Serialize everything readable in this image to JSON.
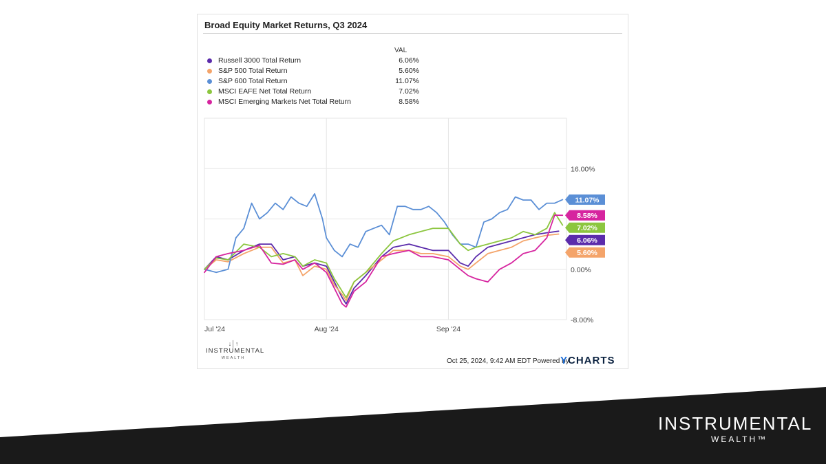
{
  "chart_data": {
    "type": "line",
    "title": "Broad Equity Market Returns, Q3 2024",
    "legend_header": "VAL",
    "x_ticks": [
      "Jul '24",
      "Aug '24",
      "Sep '24"
    ],
    "y_ticks": [
      "16.00%",
      "0.00%",
      "-8.00%"
    ],
    "ylim": [
      -8,
      24
    ],
    "y_unit": "%",
    "grid": true,
    "legend_placement": "top-left",
    "x_range": [
      0,
      92
    ],
    "x_tick_positions": [
      0,
      31,
      62
    ],
    "series": [
      {
        "name": "Russell 3000 Total Return",
        "value_label": "6.06%",
        "color": "#5b2bab",
        "x": [
          0,
          3,
          6,
          10,
          14,
          17,
          20,
          23,
          25,
          28,
          31,
          33,
          35,
          36,
          38,
          41,
          45,
          48,
          52,
          55,
          58,
          62,
          65,
          67,
          69,
          72,
          75,
          78,
          81,
          84,
          87,
          90
        ],
        "y": [
          0,
          2,
          1.5,
          3,
          4,
          4,
          1.5,
          2,
          0.5,
          1,
          0.5,
          -2,
          -4.5,
          -5.5,
          -3,
          -1,
          2,
          3.5,
          4,
          3.5,
          3,
          3,
          1,
          0.5,
          2,
          3.5,
          4,
          4.5,
          5,
          5.5,
          5.8,
          6.06
        ]
      },
      {
        "name": "S&P 500 Total Return",
        "value_label": "5.60%",
        "color": "#f4a46a",
        "x": [
          0,
          3,
          6,
          10,
          14,
          17,
          20,
          23,
          25,
          28,
          31,
          33,
          35,
          36,
          38,
          41,
          45,
          48,
          52,
          55,
          58,
          62,
          65,
          67,
          69,
          72,
          75,
          78,
          81,
          84,
          87,
          90
        ],
        "y": [
          0,
          1.5,
          1.2,
          2.5,
          3.5,
          3.5,
          1,
          1.5,
          -1,
          0.5,
          0,
          -2.5,
          -4,
          -5,
          -2,
          -0.5,
          1.5,
          3,
          3,
          2.5,
          2.5,
          2,
          0.5,
          0,
          1,
          2.5,
          3,
          3.5,
          4.5,
          5,
          5.4,
          5.6
        ]
      },
      {
        "name": "S&P 600 Total Return",
        "value_label": "11.07%",
        "color": "#5b8fd6",
        "x": [
          0,
          3,
          6,
          8,
          10,
          12,
          14,
          16,
          18,
          20,
          22,
          24,
          26,
          28,
          30,
          31,
          33,
          35,
          37,
          39,
          41,
          43,
          45,
          47,
          49,
          51,
          53,
          55,
          57,
          59,
          61,
          63,
          65,
          67,
          69,
          71,
          73,
          75,
          77,
          79,
          81,
          83,
          85,
          87,
          89,
          91
        ],
        "y": [
          0,
          -0.5,
          0,
          5,
          6.5,
          10.5,
          8,
          9,
          10.5,
          9.5,
          11.5,
          10.5,
          10,
          12,
          8,
          5,
          3,
          2,
          4,
          3.5,
          6,
          6.5,
          7,
          5.5,
          10,
          10,
          9.5,
          9.5,
          10,
          9,
          7.5,
          5.5,
          4,
          4,
          3.5,
          7.5,
          8,
          9,
          9.5,
          11.5,
          11,
          11,
          9.5,
          10.5,
          10.5,
          11.07
        ]
      },
      {
        "name": "MSCI EAFE Net Total Return",
        "value_label": "7.02%",
        "color": "#8cc63f",
        "x": [
          0,
          3,
          6,
          10,
          14,
          17,
          20,
          23,
          25,
          28,
          31,
          33,
          35,
          36,
          38,
          41,
          45,
          48,
          52,
          55,
          58,
          62,
          65,
          67,
          69,
          72,
          75,
          78,
          81,
          84,
          87,
          89,
          91
        ],
        "y": [
          0,
          1.8,
          1.5,
          4,
          3.5,
          2,
          2.5,
          2,
          0.5,
          1.5,
          1,
          -1.5,
          -3.5,
          -4.5,
          -2,
          -0.5,
          2.5,
          4.5,
          5.5,
          6,
          6.5,
          6.5,
          4,
          3,
          3.5,
          4,
          4.5,
          5,
          6,
          5.5,
          6.5,
          9,
          7.02
        ]
      },
      {
        "name": "MSCI Emerging Markets Net Total Return",
        "value_label": "8.58%",
        "color": "#d6249f",
        "x": [
          0,
          3,
          6,
          10,
          14,
          17,
          20,
          23,
          25,
          28,
          31,
          33,
          35,
          36,
          38,
          41,
          45,
          48,
          52,
          55,
          58,
          62,
          65,
          67,
          69,
          72,
          75,
          78,
          81,
          84,
          87,
          89,
          91
        ],
        "y": [
          -0.5,
          2,
          2.5,
          3,
          3.8,
          1,
          0.8,
          1.5,
          0,
          1,
          -0.5,
          -3,
          -5.5,
          -6,
          -3.5,
          -2,
          2,
          2.5,
          3,
          2,
          2,
          1.5,
          0,
          -1,
          -1.5,
          -2,
          0,
          1,
          2.5,
          3,
          5,
          8.6,
          8.58
        ]
      }
    ]
  },
  "footer": {
    "timestamp": "Oct 25, 2024, 9:42 AM EDT Powered by",
    "ycharts": "CHARTS",
    "ycharts_y": "Y"
  },
  "logo_small": {
    "name": "INSTRUMENTAL",
    "sub": "WEALTH"
  },
  "brand": {
    "name": "INSTRUMENTAL",
    "sub": "WEALTH™",
    "band_color": "#1a1a1a"
  }
}
